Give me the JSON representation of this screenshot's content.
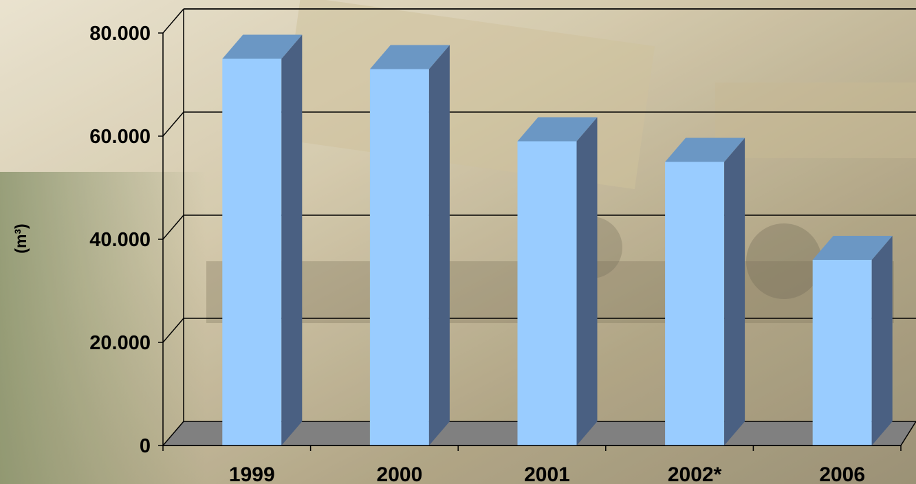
{
  "chart_data": {
    "type": "bar",
    "style": "3d-column",
    "categories": [
      "1999",
      "2000",
      "2001",
      "2002*",
      "2006"
    ],
    "series": [
      {
        "values": [
          75000,
          73000,
          59000,
          55000,
          36000
        ]
      }
    ],
    "ylabel": "(m³)",
    "xlabel": "",
    "title": "",
    "ylim": [
      0,
      80000
    ],
    "yticks": [
      "0",
      "20.000",
      "40.000",
      "60.000",
      "80.000"
    ],
    "grid": true,
    "legend": "none",
    "colors": {
      "bar_front": "#99CCFF",
      "bar_top": "#6B97C4",
      "bar_side": "#4A6082",
      "floor": "#808080",
      "gridline": "#000000",
      "text": "#000000",
      "background_tint_1": "#CFC3A2",
      "background_tint_2": "#8E8364"
    },
    "background": "photo of a logging truck loaded with timber (faded)"
  }
}
